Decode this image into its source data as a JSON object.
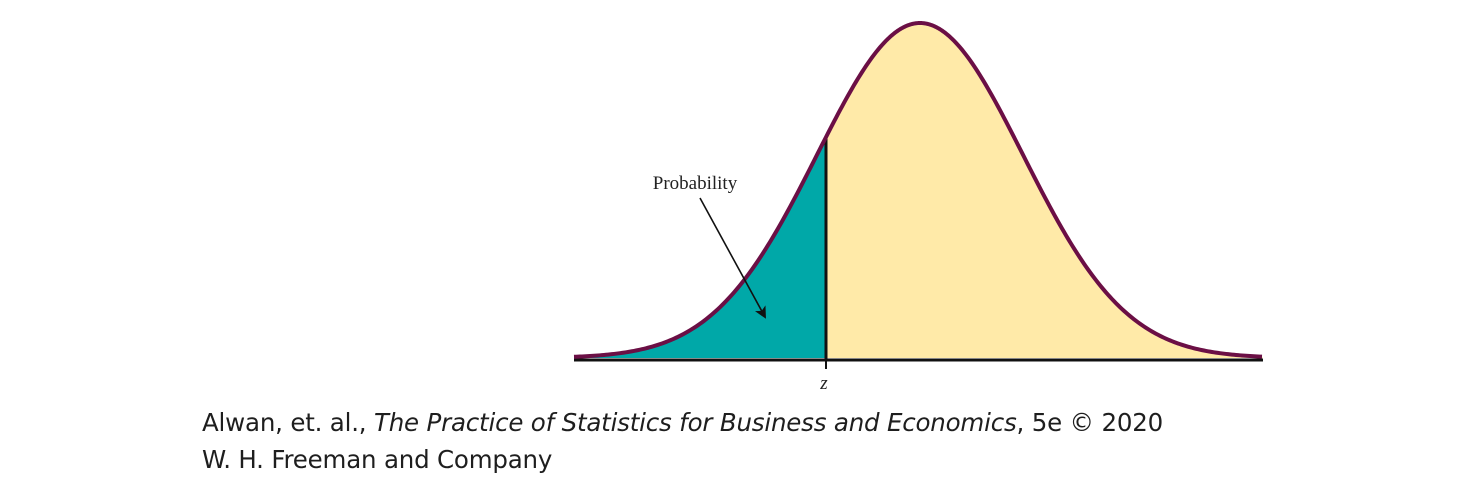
{
  "diagram": {
    "annotation_label": "Probability",
    "axis_marker_label": "z",
    "colors": {
      "curve_outline": "#6b0f45",
      "shaded_area": "#00a8a8",
      "unshaded_area": "#ffeaa8",
      "axis": "#111111",
      "arrow": "#111111"
    }
  },
  "credit": {
    "authors": "Alwan, et. al., ",
    "book_title": "The Practice of Statistics for Business and Economics",
    "edition_copyright": ", 5e © 2020",
    "publisher": "W. H. Freeman and Company"
  }
}
